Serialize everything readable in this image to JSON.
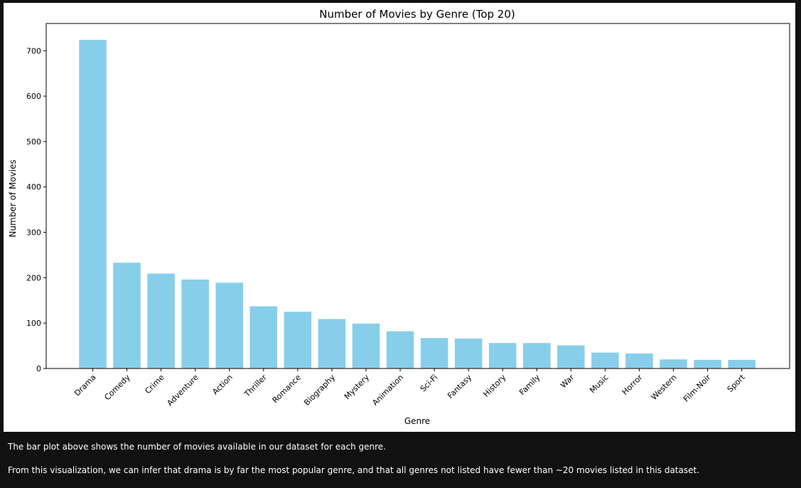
{
  "chart_data": {
    "type": "bar",
    "title": "Number of Movies by Genre (Top 20)",
    "xlabel": "Genre",
    "ylabel": "Number of Movies",
    "categories": [
      "Drama",
      "Comedy",
      "Crime",
      "Adventure",
      "Action",
      "Thriller",
      "Romance",
      "Biography",
      "Mystery",
      "Animation",
      "Sci-Fi",
      "Fantasy",
      "History",
      "Family",
      "War",
      "Music",
      "Horror",
      "Western",
      "Film-Noir",
      "Sport"
    ],
    "values": [
      724,
      233,
      209,
      196,
      189,
      137,
      125,
      109,
      99,
      82,
      67,
      66,
      56,
      56,
      51,
      35,
      33,
      20,
      19,
      19
    ],
    "ylim": [
      0,
      760
    ],
    "yticks": [
      0,
      100,
      200,
      300,
      400,
      500,
      600,
      700
    ],
    "bar_color": "#87ceeb",
    "grid": false,
    "legend": "none"
  },
  "notes": {
    "line1": "The bar plot above shows the number of movies available in our dataset for each genre.",
    "line2": "From this visualization, we can infer that drama is by far the most popular genre, and that all genres not listed have fewer than ~20 movies listed in this dataset."
  }
}
